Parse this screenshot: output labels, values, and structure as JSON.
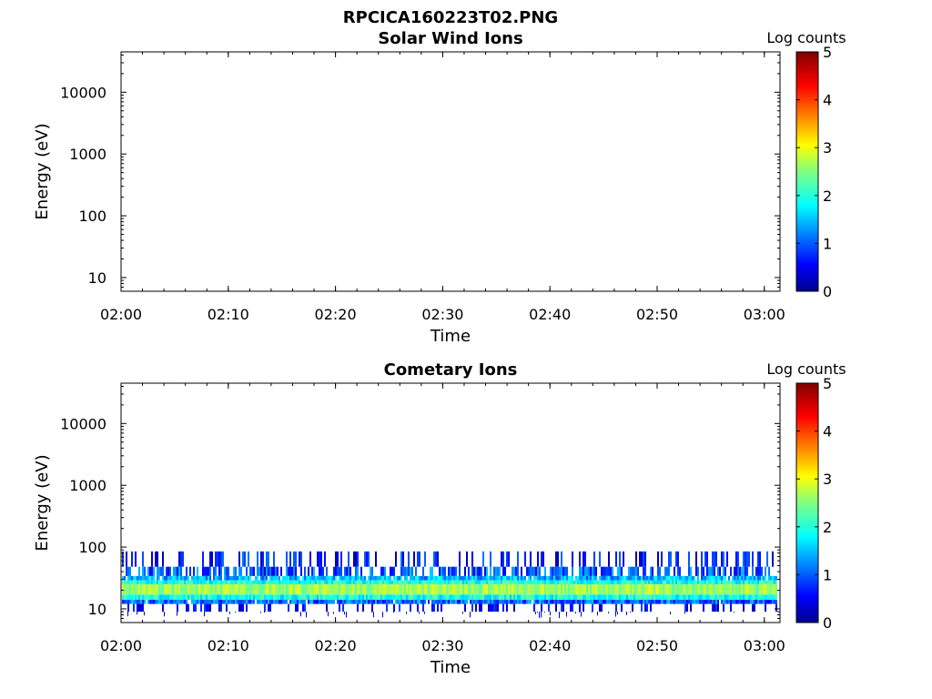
{
  "figure": {
    "title": "RPCICA160223T02.PNG"
  },
  "chart_data": [
    {
      "type": "heatmap",
      "title": "Solar Wind Ions",
      "xlabel": "Time",
      "ylabel": "Energy (eV)",
      "x_ticks": [
        "02:00",
        "02:10",
        "02:20",
        "02:30",
        "02:40",
        "02:50",
        "03:00"
      ],
      "y_scale": "log",
      "y_ticks": [
        10,
        100,
        1000,
        10000
      ],
      "y_tick_labels": [
        "10",
        "100",
        "1000",
        "10000"
      ],
      "ylim": [
        6,
        45000
      ],
      "colorbar": {
        "label": "Log counts",
        "range": [
          0,
          5
        ],
        "ticks": [
          "0",
          "1",
          "2",
          "3",
          "4",
          "5"
        ],
        "colormap": "jet"
      },
      "data_present": false,
      "bands": []
    },
    {
      "type": "heatmap",
      "title": "Cometary Ions",
      "xlabel": "Time",
      "ylabel": "Energy (eV)",
      "x_ticks": [
        "02:00",
        "02:10",
        "02:20",
        "02:30",
        "02:40",
        "02:50",
        "03:00"
      ],
      "y_scale": "log",
      "y_ticks": [
        10,
        100,
        1000,
        10000
      ],
      "y_tick_labels": [
        "10",
        "100",
        "1000",
        "10000"
      ],
      "ylim": [
        6,
        45000
      ],
      "colorbar": {
        "label": "Log counts",
        "range": [
          0,
          5
        ],
        "ticks": [
          "0",
          "1",
          "2",
          "3",
          "4",
          "5"
        ],
        "colormap": "jet"
      },
      "data_present": true,
      "bands": [
        {
          "e_low": 48,
          "e_high": 85,
          "log_counts": [
            0.2,
            1.2
          ],
          "fill": 0.35
        },
        {
          "e_low": 34,
          "e_high": 48,
          "log_counts": [
            0.4,
            1.6
          ],
          "fill": 0.65
        },
        {
          "e_low": 29,
          "e_high": 34,
          "log_counts": [
            1.0,
            2.0
          ],
          "fill": 0.9
        },
        {
          "e_low": 25,
          "e_high": 29,
          "log_counts": [
            1.6,
            2.4
          ],
          "fill": 1.0
        },
        {
          "e_low": 17,
          "e_high": 25,
          "log_counts": [
            2.3,
            3.0
          ],
          "fill": 1.0
        },
        {
          "e_low": 14,
          "e_high": 17,
          "log_counts": [
            1.6,
            2.4
          ],
          "fill": 1.0
        },
        {
          "e_low": 12,
          "e_high": 14,
          "log_counts": [
            0.6,
            1.6
          ],
          "fill": 0.95
        },
        {
          "e_low": 9,
          "e_high": 12,
          "log_counts": [
            0.2,
            1.0
          ],
          "fill": 0.25
        }
      ]
    }
  ]
}
